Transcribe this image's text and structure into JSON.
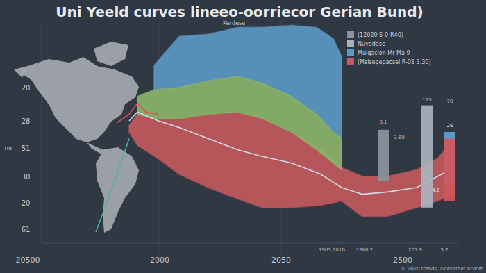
{
  "chart_data": {
    "type": "area",
    "title": "Uni Yeeld curves lineeo-oorriecor Gerian Bund)",
    "subtitle": "Kerdese",
    "xlim": [
      0,
      100
    ],
    "ylim": [
      0,
      100
    ],
    "grid": false,
    "tick_labels": false,
    "legend": "top-right",
    "series": [
      {
        "name": "(12020 S-0-R40)",
        "type": "bar",
        "color": "#8e939b",
        "x": [
          82
        ],
        "values": [
          51
        ],
        "lows": [
          28
        ]
      },
      {
        "name": "Nuyedese",
        "type": "bar",
        "color": "#aab3bd",
        "x": [
          92.5
        ],
        "values": [
          62
        ],
        "lows": [
          16
        ]
      },
      {
        "name": "Mulgacion Mr Ma 9",
        "type": "area",
        "color": "#5b9bc8",
        "x": [
          27,
          33,
          40,
          47,
          53,
          60,
          66,
          70,
          72
        ],
        "values": [
          80,
          93,
          94,
          97,
          97,
          98,
          97,
          92,
          84
        ],
        "lows": [
          69,
          70,
          73,
          75,
          72,
          66,
          58,
          50,
          47
        ]
      },
      {
        "name": "(Msisepepacsei R-0S 3.30)",
        "type": "area",
        "color": "#c75a5e",
        "x": [
          21,
          23,
          28,
          33,
          40,
          47,
          53,
          60,
          67,
          72,
          77,
          83,
          90,
          95,
          99
        ],
        "values": [
          53,
          58,
          56,
          56,
          58,
          59,
          56,
          50,
          42,
          34,
          30,
          30,
          33,
          38,
          47
        ],
        "lows": [
          50,
          44,
          38,
          31,
          25,
          20,
          16,
          16,
          17,
          19,
          12,
          12,
          16,
          19,
          22
        ]
      },
      {
        "type": "area",
        "color": "#8db86b",
        "x": [
          23,
          27,
          33,
          40,
          47,
          53,
          60,
          66,
          70,
          72
        ],
        "values": [
          66,
          69,
          70,
          73,
          75,
          72,
          66,
          58,
          50,
          47
        ],
        "lows": [
          58,
          56,
          56,
          58,
          59,
          56,
          50,
          42,
          36,
          33
        ]
      },
      {
        "type": "line",
        "color": "#d3dae3",
        "x": [
          21,
          23,
          28,
          33,
          40,
          47,
          53,
          60,
          67,
          72,
          77,
          83,
          90,
          95,
          99
        ],
        "values": [
          55,
          59,
          55,
          52,
          47,
          42,
          39,
          36,
          31,
          25,
          22,
          23,
          25,
          30,
          34
        ]
      },
      {
        "type": "line",
        "color": "#e0524f",
        "x": [
          18,
          21,
          23,
          25,
          28
        ],
        "values": [
          54,
          58,
          63,
          59,
          58
        ]
      },
      {
        "type": "line",
        "color": "#4fb3a9",
        "x": [
          13,
          17,
          21
        ],
        "values": [
          5,
          25,
          47
        ]
      },
      {
        "type": "bar",
        "color": "#5fa2cf",
        "x": [
          98
        ],
        "values": [
          50
        ],
        "lows": [
          27
        ]
      },
      {
        "type": "bar",
        "color": "#d2555a",
        "x": [
          98
        ],
        "values": [
          47
        ],
        "lows": [
          19
        ]
      }
    ],
    "annotations": [
      "20",
      "28",
      "51",
      "30",
      "20",
      "61",
      "Tfdi",
      "20500",
      "2000",
      "2050",
      "2500",
      "1903 2010",
      "1980 2",
      "201 9",
      "5 7",
      "9.1",
      "3.60",
      "175",
      "70",
      "26",
      "4.6",
      "© 2020 trends, alcexatnet ncocm"
    ]
  }
}
